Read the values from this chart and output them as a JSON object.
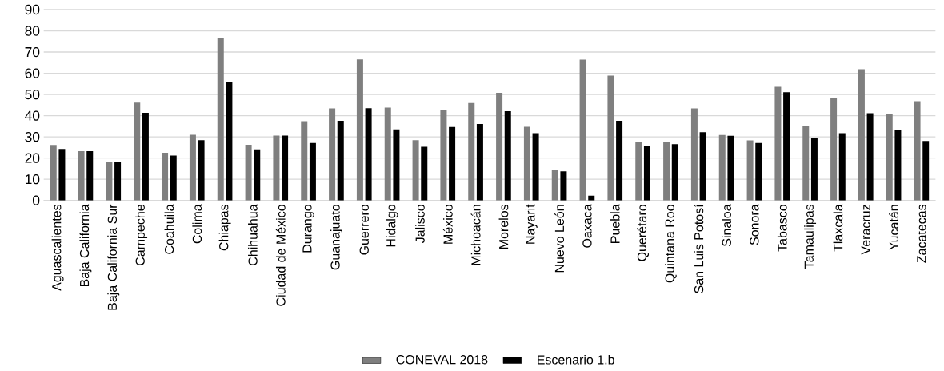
{
  "chart_data": {
    "type": "bar",
    "categories": [
      "Aguascalientes",
      "Baja California",
      "Baja California Sur",
      "Campeche",
      "Coahuila",
      "Colima",
      "Chiapas",
      "Chihuahua",
      "Ciudad de México",
      "Durango",
      "Guanajuato",
      "Guerrero",
      "Hidalgo",
      "Jalisco",
      "México",
      "Michoacán",
      "Morelos",
      "Nayarit",
      "Nuevo León",
      "Oaxaca",
      "Puebla",
      "Querétaro",
      "Quintana Roo",
      "San Luis Potosí",
      "Sinaloa",
      "Sonora",
      "Tabasco",
      "Tamaulipas",
      "Tlaxcala",
      "Veracruz",
      "Yucatán",
      "Zacatecas"
    ],
    "series": [
      {
        "name": "CONEVAL 2018",
        "color": "#7f7f7f",
        "values": [
          26.2,
          23.3,
          18.1,
          46.2,
          22.5,
          31.0,
          76.4,
          26.3,
          30.6,
          37.4,
          43.4,
          66.5,
          43.8,
          28.4,
          42.7,
          46.0,
          50.8,
          34.8,
          14.5,
          66.4,
          58.9,
          27.6,
          27.6,
          43.4,
          30.9,
          28.3,
          53.6,
          35.2,
          48.3,
          61.9,
          40.9,
          46.8
        ]
      },
      {
        "name": "Escenario 1.b",
        "color": "#000000",
        "values": [
          24.3,
          23.3,
          18.1,
          41.4,
          21.2,
          28.4,
          55.7,
          24.1,
          30.6,
          27.1,
          37.6,
          43.5,
          33.5,
          25.3,
          34.7,
          36.1,
          42.1,
          31.7,
          13.7,
          2.2,
          37.6,
          25.9,
          26.6,
          32.2,
          30.5,
          27.1,
          51.1,
          29.4,
          31.7,
          41.2,
          33.1,
          28.1
        ]
      }
    ],
    "ylim": [
      0,
      90
    ],
    "yticks": [
      0,
      10,
      20,
      30,
      40,
      50,
      60,
      70,
      80,
      90
    ],
    "grid": "y",
    "legend": "bottom"
  }
}
